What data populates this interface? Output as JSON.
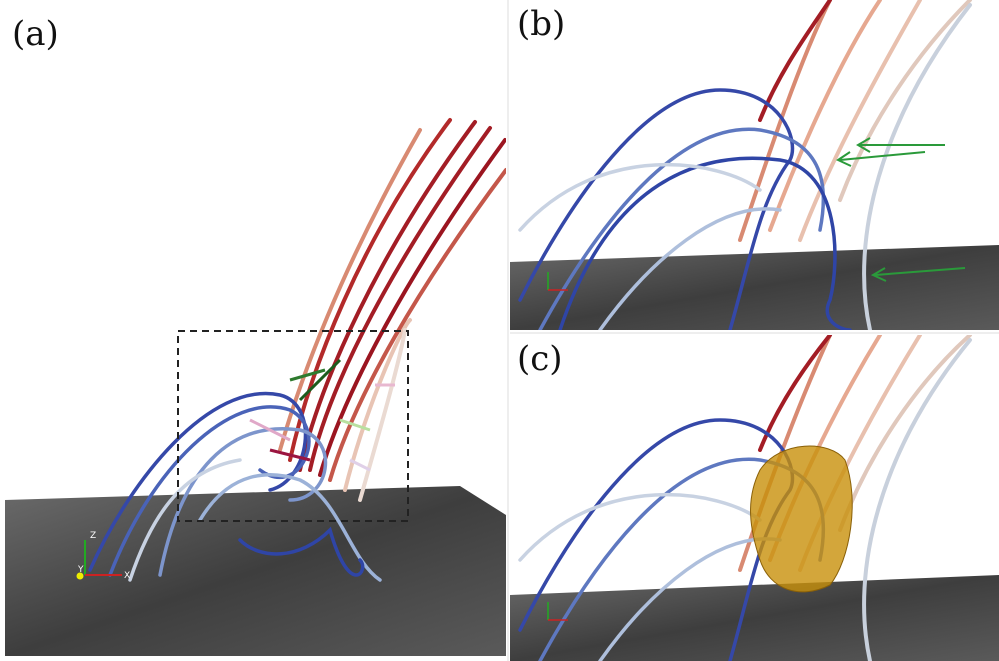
{
  "panels": [
    {
      "label": "(a)"
    },
    {
      "label": "(b)"
    },
    {
      "label": "(c)"
    }
  ],
  "axes_triad": {
    "z": "Z",
    "y": "Y",
    "x": "X"
  }
}
